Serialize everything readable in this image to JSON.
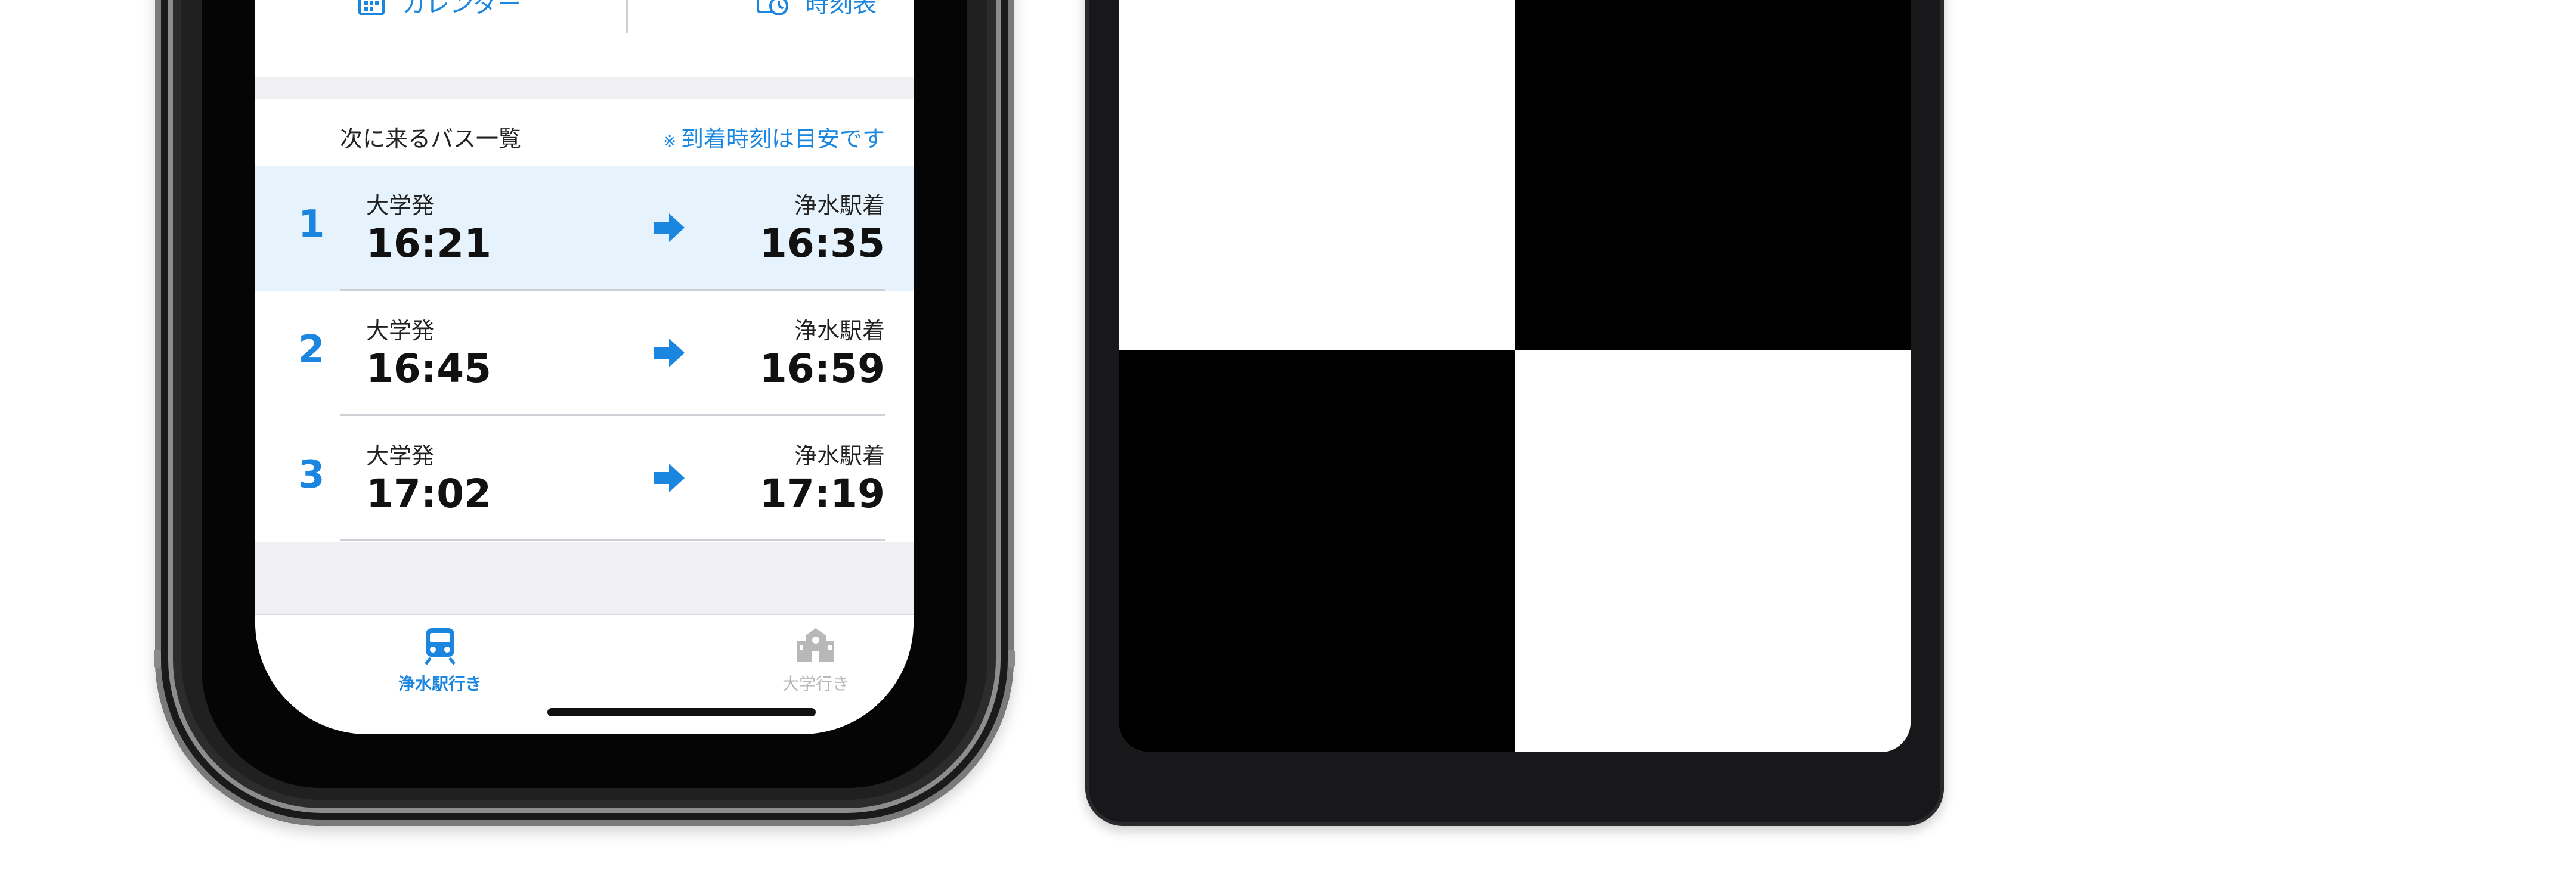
{
  "iphone": {
    "top_buttons": {
      "calendar_label": "カレンダー",
      "timetable_label": "時刻表"
    },
    "list_header": {
      "title": "次に来るバス一覧",
      "note_mark": "※",
      "note": "到着時刻は目安です"
    },
    "rows": [
      {
        "index": "1",
        "dep_label": "大学発",
        "dep_time": "16:21",
        "arr_label": "浄水駅着",
        "arr_time": "16:35",
        "active": true
      },
      {
        "index": "2",
        "dep_label": "大学発",
        "dep_time": "16:45",
        "arr_label": "浄水駅着",
        "arr_time": "16:59",
        "active": false
      },
      {
        "index": "3",
        "dep_label": "大学発",
        "dep_time": "17:02",
        "arr_label": "浄水駅着",
        "arr_time": "17:19",
        "active": false
      }
    ],
    "tabs": [
      {
        "label": "浄水駅行き",
        "icon": "train-icon",
        "selected": true
      },
      {
        "label": "大学行き",
        "icon": "school-icon",
        "selected": false
      }
    ]
  },
  "colors": {
    "accent": "#1a86e0",
    "active_row": "#e6f3fc",
    "section_gap": "#f0f0f4"
  }
}
